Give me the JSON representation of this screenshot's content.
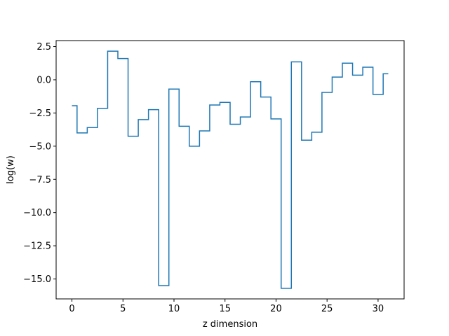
{
  "chart_data": {
    "type": "line",
    "drawstyle": "steps-mid",
    "title": "",
    "xlabel": "z dimension",
    "ylabel": "log(w)",
    "xlim": [
      -1.55,
      32.55
    ],
    "ylim": [
      -16.5,
      2.95
    ],
    "xticks": [
      0,
      5,
      10,
      15,
      20,
      25,
      30
    ],
    "yticks": [
      2.5,
      0.0,
      -2.5,
      -5.0,
      -7.5,
      -10.0,
      -12.5,
      -15.0
    ],
    "ytick_labels": [
      "2.5",
      "0.0",
      "−2.5",
      "−5.0",
      "−7.5",
      "−10.0",
      "−12.5",
      "−15.0"
    ],
    "grid": false,
    "color": "#1f77b4",
    "series": [
      {
        "x": [
          0,
          1,
          2,
          3,
          4,
          5,
          6,
          7,
          8,
          9,
          10,
          11,
          12,
          13,
          14,
          15,
          16,
          17,
          18,
          19,
          20,
          21,
          22,
          23,
          24,
          25,
          26,
          27,
          28,
          29,
          30,
          31
        ],
        "values": [
          -1.95,
          -4.0,
          -3.6,
          -2.15,
          2.15,
          1.6,
          -4.25,
          -3.0,
          -2.25,
          -15.5,
          -0.7,
          -3.5,
          -5.0,
          -3.85,
          -1.9,
          -1.7,
          -3.35,
          -2.8,
          -0.15,
          -1.3,
          -2.95,
          -15.7,
          1.35,
          -4.55,
          -3.95,
          -0.95,
          0.2,
          1.25,
          0.35,
          0.95,
          -1.1,
          0.45
        ]
      }
    ]
  }
}
